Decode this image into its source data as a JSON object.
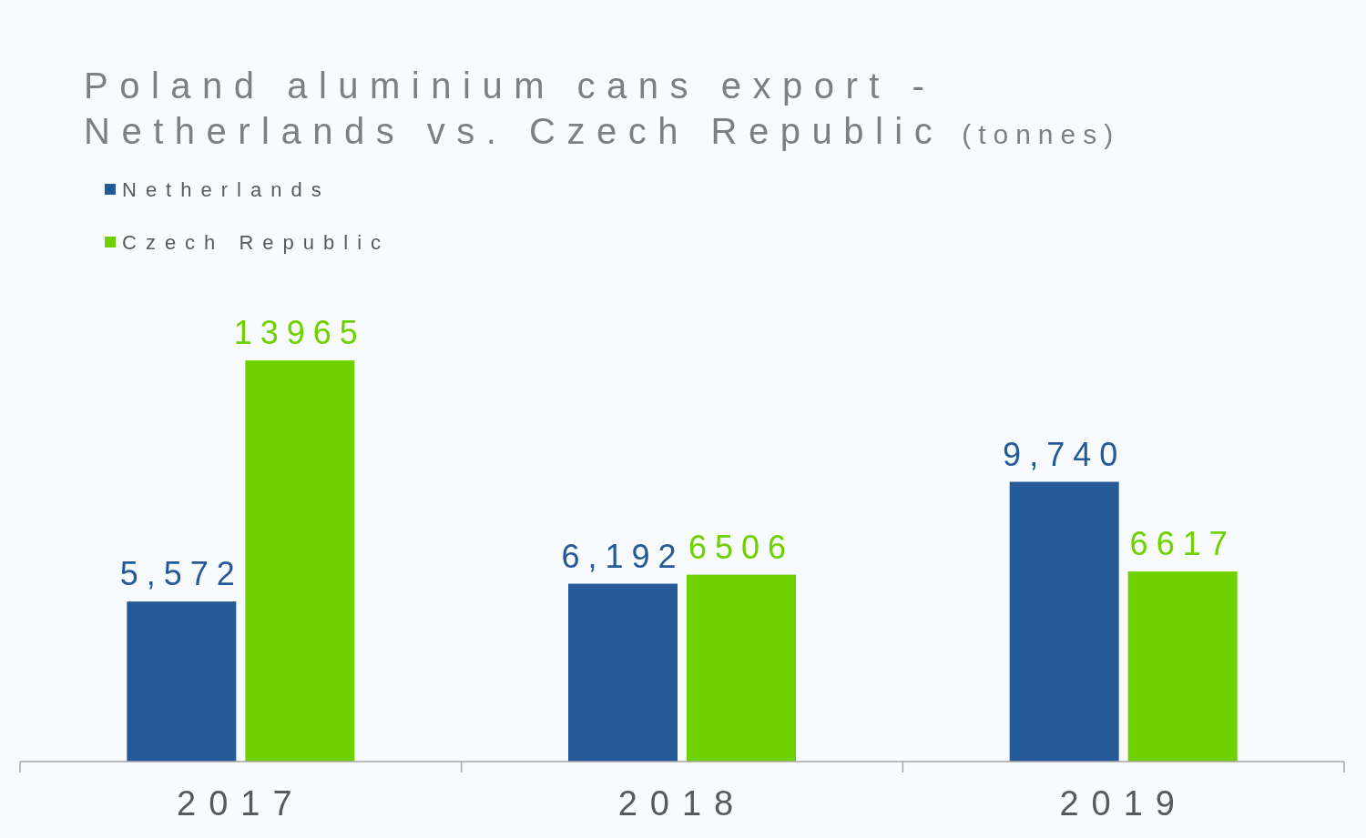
{
  "chart_data": {
    "type": "bar",
    "title": "Poland aluminium cans export - Netherlands vs. Czech Republic",
    "subtitle": "(tonnes)",
    "categories": [
      "2017",
      "2018",
      "2019"
    ],
    "series": [
      {
        "name": "Netherlands",
        "color": "#255a99",
        "values": [
          5572,
          6192,
          9740
        ],
        "value_labels": [
          "5,572",
          "6,192",
          "9,740"
        ]
      },
      {
        "name": "Czech Republic",
        "color": "#6fd100",
        "values": [
          13965,
          6506,
          6617
        ],
        "value_labels": [
          "13965",
          "6506",
          "6617"
        ]
      }
    ],
    "legend": "top left",
    "grid": false
  }
}
